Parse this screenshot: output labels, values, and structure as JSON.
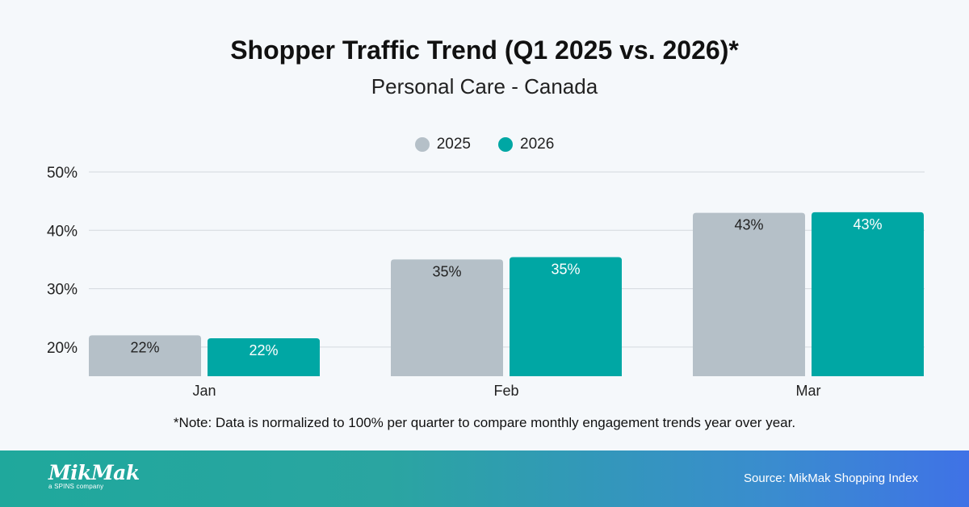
{
  "chart_data": {
    "type": "bar",
    "title": "Shopper Traffic Trend (Q1 2025 vs. 2026)*",
    "subtitle": "Personal Care - Canada",
    "categories": [
      "Jan",
      "Feb",
      "Mar"
    ],
    "series": [
      {
        "name": "2025",
        "values": [
          22,
          35,
          43
        ],
        "labels": [
          "22%",
          "35%",
          "43%"
        ],
        "color": "#b5c0c8",
        "label_color": "#222222"
      },
      {
        "name": "2026",
        "values": [
          21.5,
          35.4,
          43.1
        ],
        "labels": [
          "22%",
          "35%",
          "43%"
        ],
        "color": "#00a7a4",
        "label_color": "#ffffff"
      }
    ],
    "ylim": [
      15,
      50
    ],
    "yticks": [
      20,
      30,
      40,
      50
    ],
    "ytick_labels": [
      "20%",
      "30%",
      "40%",
      "50%"
    ],
    "grid": true,
    "legend_position": "top-center"
  },
  "note": "*Note: Data is normalized to 100% per quarter to compare monthly engagement trends year over year.",
  "footer": {
    "logo_text": "MikMak",
    "logo_tagline": "a SPINS company",
    "source": "Source: MikMak Shopping Index"
  }
}
